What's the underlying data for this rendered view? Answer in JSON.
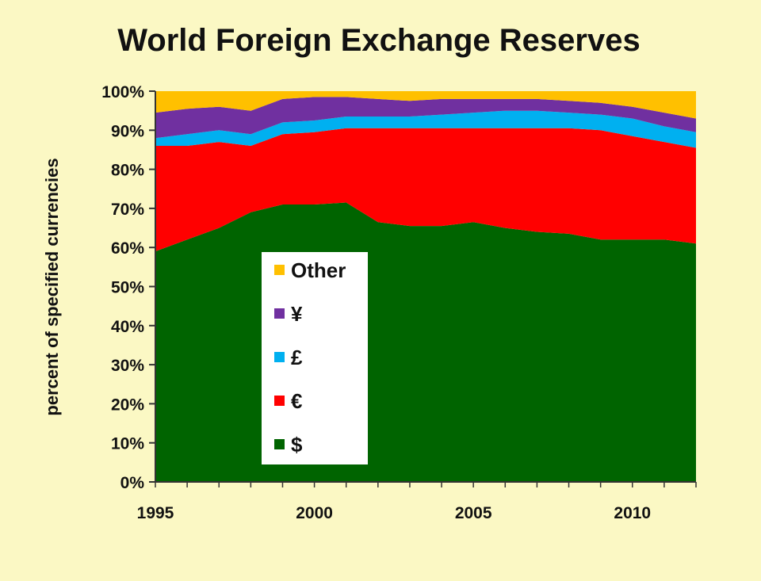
{
  "chart_data": {
    "type": "area",
    "stacked": true,
    "title": "World Foreign Exchange Reserves",
    "xlabel": "",
    "ylabel": "percent of specified currencies",
    "xlim": [
      1995,
      2012
    ],
    "ylim": [
      0,
      100
    ],
    "x_ticks": [
      1995,
      2000,
      2005,
      2010
    ],
    "y_ticks": [
      "0%",
      "10%",
      "20%",
      "30%",
      "40%",
      "50%",
      "60%",
      "70%",
      "80%",
      "90%",
      "100%"
    ],
    "x": [
      1995,
      1996,
      1997,
      1998,
      1999,
      2000,
      2001,
      2002,
      2003,
      2004,
      2005,
      2006,
      2007,
      2008,
      2009,
      2010,
      2011,
      2012
    ],
    "series": [
      {
        "name": "$",
        "color": "#006400",
        "values": [
          59,
          62,
          65,
          69,
          71,
          71,
          71.5,
          66.5,
          65.5,
          65.5,
          66.5,
          65,
          64,
          63.5,
          62,
          62,
          62,
          61
        ]
      },
      {
        "name": "€",
        "color": "#ff0000",
        "values": [
          27,
          24,
          22,
          17,
          18,
          18.5,
          19,
          24,
          25,
          25,
          24,
          25.5,
          26.5,
          27,
          28,
          26.5,
          25,
          24.5
        ]
      },
      {
        "name": "£",
        "color": "#00b0f0",
        "values": [
          2,
          3,
          3,
          3,
          3,
          3,
          3,
          3,
          3,
          3.5,
          4,
          4.5,
          4.5,
          4,
          4,
          4.5,
          4,
          4
        ]
      },
      {
        "name": "¥",
        "color": "#7030a0",
        "values": [
          6.5,
          6.5,
          6,
          6,
          6,
          6,
          5,
          4.5,
          4,
          4,
          3.5,
          3,
          3,
          3,
          3,
          3,
          3.5,
          3.5
        ]
      },
      {
        "name": "Other",
        "color": "#ffc000",
        "values": [
          5.5,
          4.5,
          4,
          5,
          2,
          1.5,
          1.5,
          2,
          2.5,
          2,
          2,
          2,
          2,
          2.5,
          3,
          4,
          5.5,
          7
        ]
      }
    ],
    "legend": {
      "placement": "inside-left",
      "order": [
        "Other",
        "¥",
        "£",
        "€",
        "$"
      ]
    }
  }
}
